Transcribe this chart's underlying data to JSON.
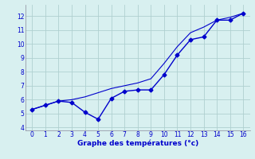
{
  "line1_x": [
    0,
    1,
    2,
    3,
    4,
    5,
    6,
    7,
    8,
    9,
    10,
    11,
    12,
    13,
    14,
    15,
    16
  ],
  "line1_y": [
    5.3,
    5.6,
    5.9,
    5.8,
    5.1,
    4.6,
    6.1,
    6.6,
    6.7,
    6.7,
    7.8,
    9.2,
    10.3,
    10.5,
    11.7,
    11.7,
    12.2
  ],
  "line2_x": [
    0,
    1,
    2,
    3,
    4,
    5,
    6,
    7,
    8,
    9,
    10,
    11,
    12,
    13,
    14,
    15,
    16
  ],
  "line2_y": [
    5.3,
    5.6,
    5.9,
    6.0,
    6.2,
    6.5,
    6.8,
    7.0,
    7.2,
    7.5,
    8.6,
    9.8,
    10.8,
    11.2,
    11.7,
    11.9,
    12.2
  ],
  "xlabel": "Graphe des températures (°c)",
  "xlim": [
    -0.5,
    16.5
  ],
  "ylim": [
    3.8,
    12.8
  ],
  "yticks": [
    4,
    5,
    6,
    7,
    8,
    9,
    10,
    11,
    12
  ],
  "xticks": [
    0,
    1,
    2,
    3,
    4,
    5,
    6,
    7,
    8,
    9,
    10,
    11,
    12,
    13,
    14,
    15,
    16
  ],
  "line_color": "#0000cc",
  "bg_color": "#d8f0f0",
  "grid_color": "#b0d0d0",
  "marker": "D",
  "marker_size": 2.5,
  "linewidth1": 1.0,
  "linewidth2": 0.8
}
